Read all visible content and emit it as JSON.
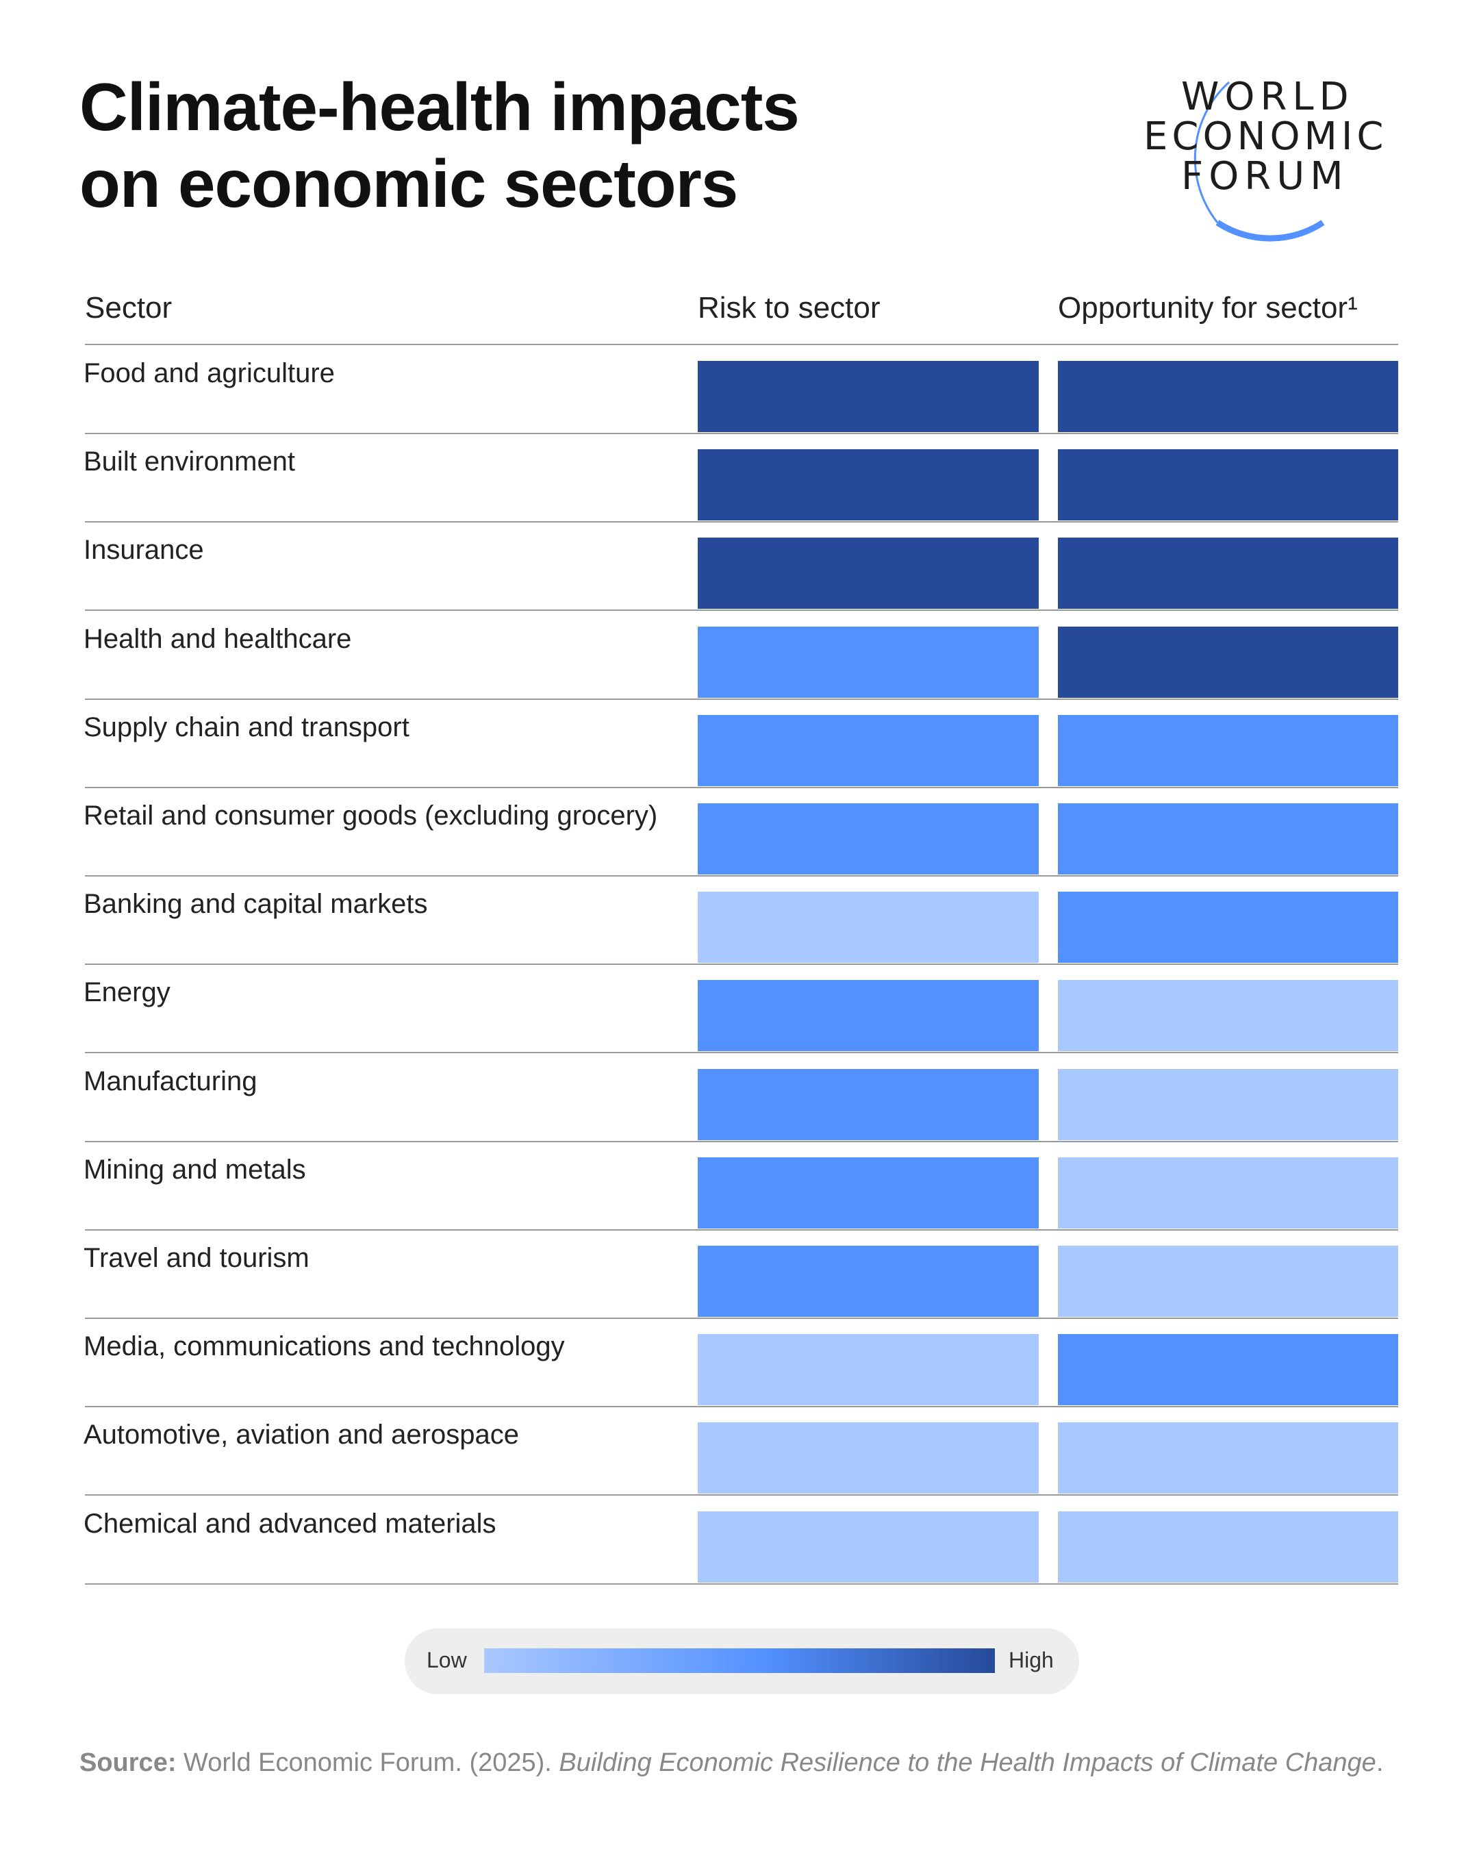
{
  "title_line1": "Climate-health impacts",
  "title_line2": "on economic sectors",
  "logo_text": [
    "WORLD",
    "ECONOMIC",
    "FORUM"
  ],
  "colors": {
    "high": "#264A99",
    "medium": "#5391FF",
    "low": "#A9C8FF",
    "logo_arc": "#5391FF"
  },
  "chart_data": {
    "type": "heatmap",
    "title": "Climate-health impacts on economic sectors",
    "columns": [
      "Sector",
      "Risk to sector",
      "Opportunity for sector¹"
    ],
    "scale": [
      "Low",
      "Medium",
      "High"
    ],
    "rows": [
      {
        "sector": "Food and agriculture",
        "risk": "High",
        "opportunity": "High"
      },
      {
        "sector": "Built environment",
        "risk": "High",
        "opportunity": "High"
      },
      {
        "sector": "Insurance",
        "risk": "High",
        "opportunity": "High"
      },
      {
        "sector": "Health and healthcare",
        "risk": "Medium",
        "opportunity": "High"
      },
      {
        "sector": "Supply chain and transport",
        "risk": "Medium",
        "opportunity": "Medium"
      },
      {
        "sector": "Retail and consumer goods (excluding grocery)",
        "risk": "Medium",
        "opportunity": "Medium"
      },
      {
        "sector": "Banking and capital markets",
        "risk": "Low",
        "opportunity": "Medium"
      },
      {
        "sector": "Energy",
        "risk": "Medium",
        "opportunity": "Low"
      },
      {
        "sector": "Manufacturing",
        "risk": "Medium",
        "opportunity": "Low"
      },
      {
        "sector": "Mining and metals",
        "risk": "Medium",
        "opportunity": "Low"
      },
      {
        "sector": "Travel and tourism",
        "risk": "Medium",
        "opportunity": "Low"
      },
      {
        "sector": "Media, communications and technology",
        "risk": "Low",
        "opportunity": "Medium"
      },
      {
        "sector": "Automotive, aviation and aerospace",
        "risk": "Low",
        "opportunity": "Low"
      },
      {
        "sector": "Chemical and advanced materials",
        "risk": "Low",
        "opportunity": "Low"
      }
    ],
    "legend": {
      "low_label": "Low",
      "high_label": "High",
      "placement": "bottom"
    }
  },
  "source": {
    "label": "Source:",
    "text": " World Economic Forum. (2025). ",
    "italic": "Building Economic Resilience to the Health Impacts of Climate Change",
    "end": "."
  }
}
